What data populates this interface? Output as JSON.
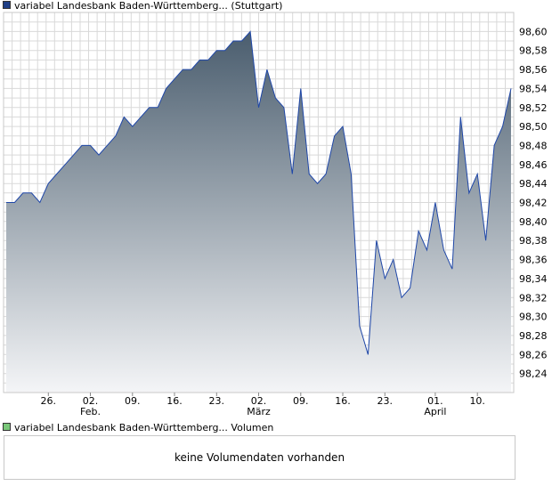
{
  "legend": {
    "price_label": "variabel Landesbank Baden-Württemberg... (Stuttgart)",
    "volume_label": "variabel Landesbank Baden-Württemberg... Volumen"
  },
  "colors": {
    "price_swatch": "#1f3f86",
    "volume_swatch": "#79c779",
    "line": "#1f47a8",
    "area_top": "#4a5d6e",
    "area_bottom": "#f4f5f7",
    "grid": "#d9d9d9",
    "frame": "#c8c8c8"
  },
  "volume": {
    "message": "keine Volumendaten vorhanden"
  },
  "chart_data": {
    "type": "area",
    "title": "",
    "xlabel": "",
    "ylabel": "",
    "ylim": [
      98.22,
      98.62
    ],
    "y_ticks": [
      "98,24",
      "98,26",
      "98,28",
      "98,30",
      "98,32",
      "98,34",
      "98,36",
      "98,38",
      "98,40",
      "98,42",
      "98,44",
      "98,46",
      "98,48",
      "98,50",
      "98,52",
      "98,54",
      "98,56",
      "98,58",
      "98,60"
    ],
    "x_ticks": [
      {
        "label": "26.",
        "month": "",
        "index": 5
      },
      {
        "label": "02.",
        "month": "Feb.",
        "index": 10
      },
      {
        "label": "09.",
        "month": "",
        "index": 15
      },
      {
        "label": "16.",
        "month": "",
        "index": 20
      },
      {
        "label": "23.",
        "month": "",
        "index": 25
      },
      {
        "label": "02.",
        "month": "März",
        "index": 30
      },
      {
        "label": "09.",
        "month": "",
        "index": 35
      },
      {
        "label": "16.",
        "month": "",
        "index": 40
      },
      {
        "label": "23.",
        "month": "",
        "index": 45
      },
      {
        "label": "01.",
        "month": "April",
        "index": 51
      },
      {
        "label": "10.",
        "month": "",
        "index": 56
      }
    ],
    "x_count": 61,
    "grid": true,
    "series": [
      {
        "values": [
          98.42,
          98.42,
          98.43,
          98.43,
          98.42,
          98.44,
          98.45,
          98.46,
          98.47,
          98.48,
          98.48,
          98.47,
          98.48,
          98.49,
          98.51,
          98.5,
          98.51,
          98.52,
          98.52,
          98.54,
          98.55,
          98.56,
          98.56,
          98.57,
          98.57,
          98.58,
          98.58,
          98.59,
          98.59,
          98.6,
          98.52,
          98.56,
          98.53,
          98.52,
          98.45,
          98.54,
          98.45,
          98.44,
          98.45,
          98.49,
          98.5,
          98.45,
          98.29,
          98.26,
          98.38,
          98.34,
          98.36,
          98.32,
          98.33,
          98.39,
          98.37,
          98.42,
          98.37,
          98.35,
          98.51,
          98.43,
          98.45,
          98.38,
          98.48,
          98.5,
          98.54
        ]
      }
    ]
  }
}
